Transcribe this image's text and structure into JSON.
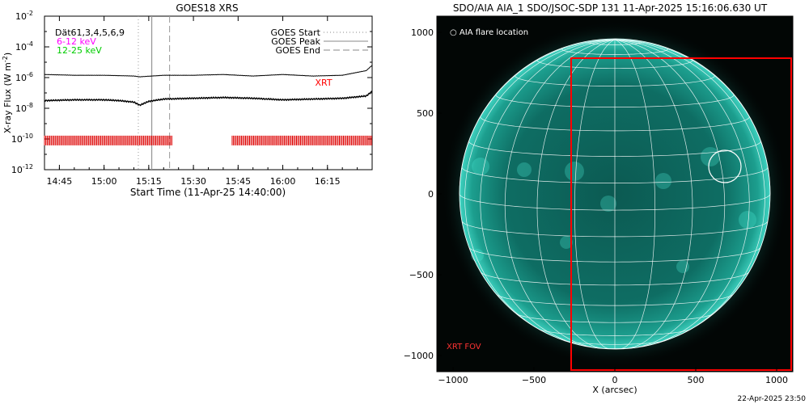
{
  "chart_data": [
    {
      "type": "line",
      "title": "GOES18 XRS",
      "xlabel": "Start Time (11-Apr-25 14:40:00)",
      "ylabel": "X-ray Flux (W m⁻²)",
      "ylabel_main": "X-ray Flux (W m",
      "ylabel_sup": "-2",
      "ylabel_close": ")",
      "xlim": [
        0,
        110
      ],
      "ylim_log10": [
        -12,
        -2
      ],
      "log_y": true,
      "x_ticks": [
        {
          "min": 5,
          "label": "14:45"
        },
        {
          "min": 20,
          "label": "15:00"
        },
        {
          "min": 35,
          "label": "15:15"
        },
        {
          "min": 50,
          "label": "15:30"
        },
        {
          "min": 65,
          "label": "15:45"
        },
        {
          "min": 80,
          "label": "16:00"
        },
        {
          "min": 95,
          "label": "16:15"
        }
      ],
      "y_ticks": [
        {
          "exp": -2,
          "label": "10",
          "sup": "-2"
        },
        {
          "exp": -4,
          "label": "10",
          "sup": "-4"
        },
        {
          "exp": -6,
          "label": "10",
          "sup": "-6"
        },
        {
          "exp": -8,
          "label": "10",
          "sup": "-8"
        },
        {
          "exp": -10,
          "label": "10",
          "sup": "-10"
        },
        {
          "exp": -12,
          "label": "10",
          "sup": "-12"
        }
      ],
      "legend_left": [
        {
          "text": "Dät61,3,4,5,6,9",
          "color": "#000000"
        },
        {
          "text": "6-12 keV",
          "color": "#ff00ff"
        },
        {
          "text": "12-25 keV",
          "color": "#00cc00"
        }
      ],
      "legend_right": [
        {
          "text": "GOES Start",
          "style": "dotted"
        },
        {
          "text": "GOES Peak",
          "style": "solid"
        },
        {
          "text": "GOES End",
          "style": "dashed"
        }
      ],
      "xrt_label": "XRT",
      "xrt_label_color": "#ff0000",
      "markers": {
        "goes_start_min": 31.5,
        "goes_peak_min": 36.0,
        "goes_end_min": 42.0
      },
      "series": [
        {
          "name": "",
          "color": "#000000",
          "x": [
            0,
            10,
            20,
            30,
            32,
            40,
            50,
            60,
            70,
            80,
            90,
            100,
            108,
            110
          ],
          "log10_y": [
            -5.8,
            -5.85,
            -5.85,
            -5.9,
            -5.95,
            -5.85,
            -5.85,
            -5.8,
            -5.9,
            -5.8,
            -5.9,
            -5.85,
            -5.55,
            -5.2
          ]
        },
        {
          "name": "",
          "color": "#000000",
          "x": [
            0,
            10,
            20,
            25,
            30,
            32,
            35,
            40,
            50,
            60,
            70,
            80,
            90,
            100,
            108,
            110
          ],
          "log10_y": [
            -7.5,
            -7.45,
            -7.45,
            -7.5,
            -7.6,
            -7.8,
            -7.55,
            -7.4,
            -7.35,
            -7.3,
            -7.35,
            -7.45,
            -7.4,
            -7.35,
            -7.2,
            -6.9
          ]
        }
      ],
      "xrt_segments_min": [
        [
          0,
          43
        ],
        [
          63,
          110
        ]
      ],
      "xrt_log10_center": -10.1
    },
    {
      "type": "scatter",
      "title": "SDO/AIA AIA_1 SDO/JSOC-SDP 131 11-Apr-2025 15:16:06.630 UT",
      "xlabel": "X (arcsec)",
      "xlim": [
        -1100,
        1100
      ],
      "ylim": [
        -1100,
        1100
      ],
      "x_ticks": [
        -1000,
        -500,
        0,
        500,
        1000
      ],
      "y_ticks": [
        1000,
        500,
        0,
        -500,
        -1000
      ],
      "x_tick_labels": [
        "−1000",
        "−500",
        "0",
        "500",
        "1000"
      ],
      "y_tick_labels": [
        "1000",
        "500",
        "0",
        "−500",
        "−1000"
      ],
      "solar_radius_arcsec": 960,
      "flare_location": {
        "x": 680,
        "y": 170,
        "radius": 100
      },
      "flare_legend": "○ AIA flare location",
      "xrt_fov": {
        "x0": -270,
        "x1": 1100,
        "y0": -1100,
        "y1": 840,
        "label": "XRT FOV",
        "color": "#ff0000"
      }
    }
  ],
  "timestamp": "22-Apr-2025 23:50"
}
